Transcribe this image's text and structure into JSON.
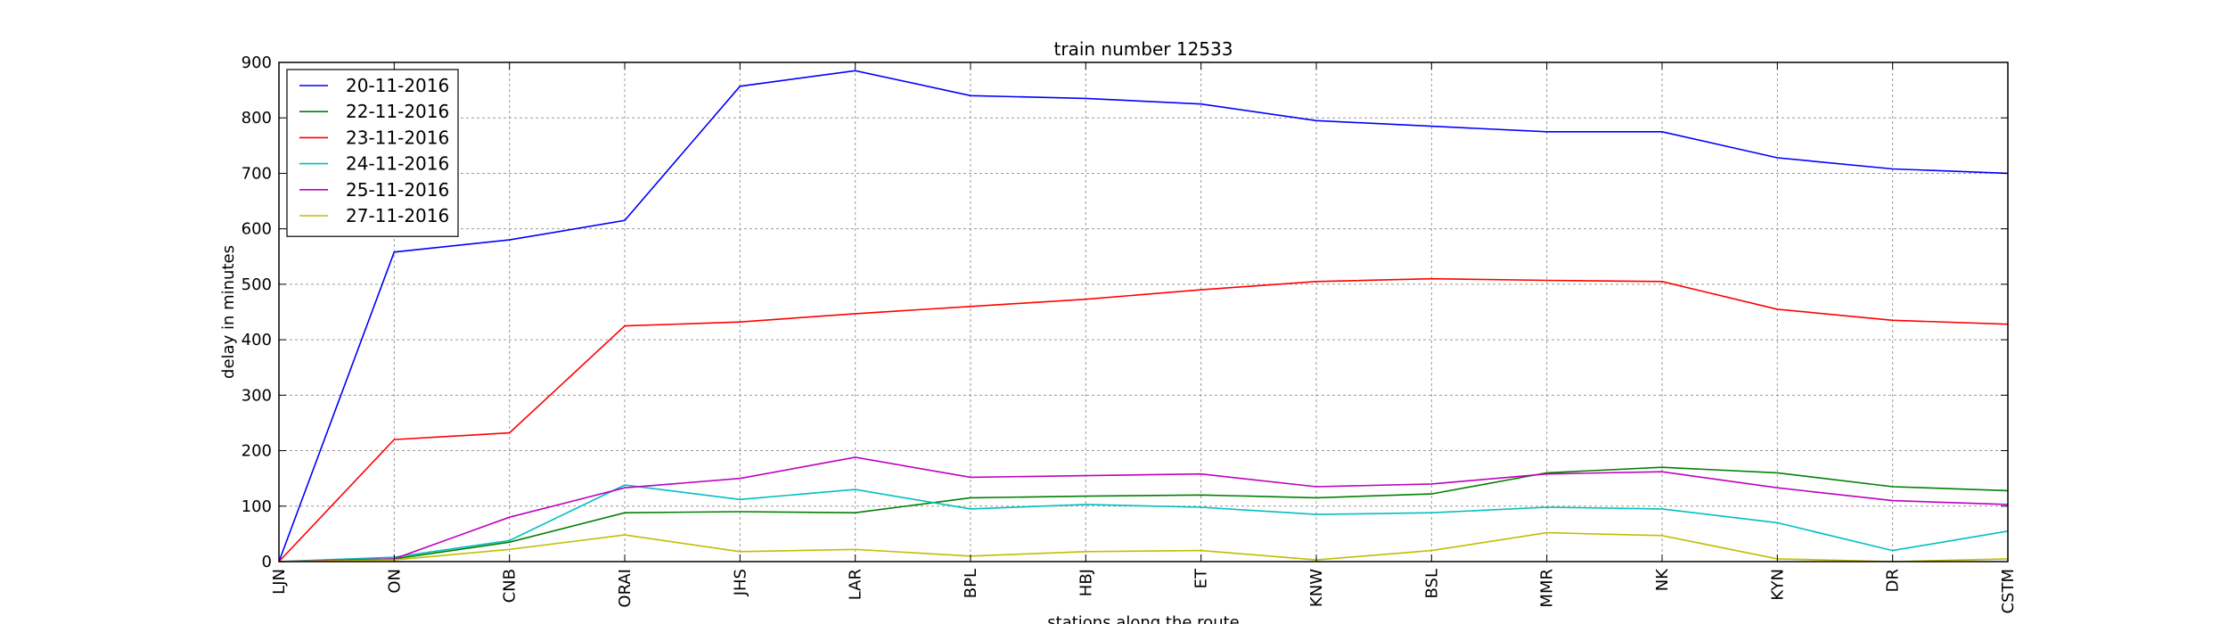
{
  "chart_data": {
    "type": "line",
    "title": "train number 12533",
    "xlabel": "stations along the route",
    "ylabel": "delay in minutes",
    "categories": [
      "LJN",
      "ON",
      "CNB",
      "ORAI",
      "JHS",
      "LAR",
      "BPL",
      "HBJ",
      "ET",
      "KNW",
      "BSL",
      "MMR",
      "NK",
      "KYN",
      "DR",
      "CSTM"
    ],
    "ylim": [
      0,
      900
    ],
    "yticks": [
      0,
      100,
      200,
      300,
      400,
      500,
      600,
      700,
      800,
      900
    ],
    "grid": true,
    "legend_position": "top-left",
    "series": [
      {
        "name": "20-11-2016",
        "color": "#0000ff",
        "values": [
          0,
          558,
          580,
          615,
          857,
          885,
          840,
          835,
          825,
          795,
          785,
          775,
          775,
          728,
          708,
          700
        ]
      },
      {
        "name": "22-11-2016",
        "color": "#008000",
        "values": [
          0,
          5,
          35,
          88,
          90,
          88,
          115,
          118,
          120,
          115,
          122,
          160,
          170,
          160,
          135,
          128
        ]
      },
      {
        "name": "23-11-2016",
        "color": "#ff0000",
        "values": [
          0,
          220,
          232,
          425,
          432,
          447,
          460,
          473,
          490,
          505,
          510,
          507,
          505,
          455,
          435,
          428
        ]
      },
      {
        "name": "24-11-2016",
        "color": "#00bfbf",
        "values": [
          0,
          8,
          38,
          138,
          112,
          130,
          95,
          103,
          98,
          85,
          88,
          98,
          95,
          70,
          20,
          55
        ]
      },
      {
        "name": "25-11-2016",
        "color": "#bf00bf",
        "values": [
          0,
          5,
          80,
          133,
          150,
          188,
          152,
          155,
          158,
          135,
          140,
          158,
          162,
          133,
          110,
          103
        ]
      },
      {
        "name": "27-11-2016",
        "color": "#bfbf00",
        "values": [
          0,
          3,
          22,
          48,
          18,
          22,
          10,
          18,
          20,
          3,
          20,
          52,
          47,
          5,
          0,
          5
        ]
      }
    ]
  }
}
